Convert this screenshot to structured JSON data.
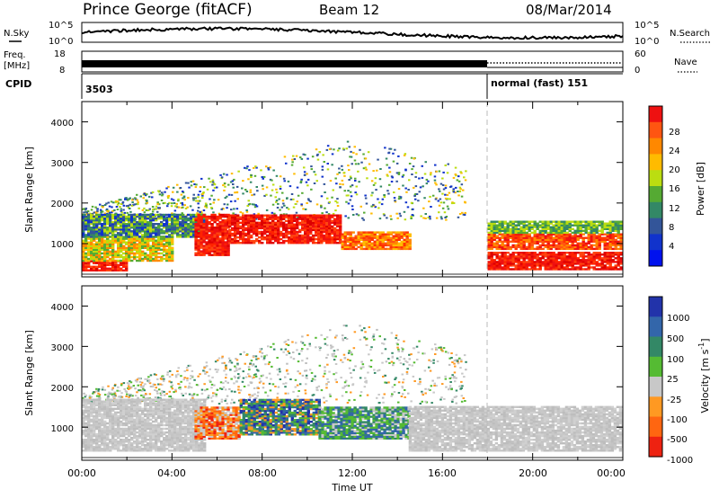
{
  "header": {
    "station": "Prince George (fitACF)",
    "beam": "Beam 12",
    "date": "08/Mar/2014"
  },
  "aux_panels": {
    "nsky_label": "N.Sky",
    "nsky_ticks": [
      "10^5",
      "10^0"
    ],
    "nsearch_label": "N.Search",
    "nsearch_ticks": [
      "10^5",
      "10^0"
    ],
    "freq_label": "Freq.",
    "freq_unit": "[MHz]",
    "freq_ticks": [
      "18",
      "8"
    ],
    "nave_label": "Nave",
    "nave_ticks": [
      "60",
      "0"
    ],
    "cpid_label": "CPID",
    "cpid_segments": [
      {
        "start_hour": 0,
        "end_hour": 18,
        "text": "3503"
      },
      {
        "start_hour": 18,
        "end_hour": 24,
        "text": "normal (fast) 151"
      }
    ]
  },
  "colorbars": {
    "power": {
      "label": "Power [dB]",
      "ticks": [
        "28",
        "24",
        "20",
        "16",
        "12",
        "8",
        "4"
      ],
      "colors": [
        "#ee1111",
        "#ff5511",
        "#ff8800",
        "#ffbb00",
        "#bbdd11",
        "#55aa33",
        "#338866",
        "#335599",
        "#1133cc",
        "#0011ee"
      ]
    },
    "velocity": {
      "label_main": "Velocity [m s",
      "label_exp": "-1",
      "label_end": "]",
      "ticks": [
        "1000",
        "500",
        "100",
        "25",
        "-25",
        "-100",
        "-500",
        "-1000"
      ],
      "colors": [
        "#2233aa",
        "#3366aa",
        "#338866",
        "#55bb33",
        "#c8c8c8",
        "#ff9922",
        "#ff6611",
        "#ee2211"
      ]
    }
  },
  "chart_data": [
    {
      "type": "heatmap",
      "title": "Power",
      "ylabel": "Slant Range [km]",
      "xlabel": "Time UT",
      "xlim": [
        0,
        24
      ],
      "ylim": [
        180,
        4500
      ],
      "x_ticks": [
        "00:00",
        "04:00",
        "08:00",
        "12:00",
        "16:00",
        "20:00",
        "00:00"
      ],
      "y_ticks": [
        "1000",
        "2000",
        "3000",
        "4000"
      ],
      "cpid_change_hour": 18,
      "bands": [
        {
          "t0": 0,
          "t1": 2,
          "r0": 320,
          "r1": 560,
          "level": "red"
        },
        {
          "t0": 0,
          "t1": 4,
          "r0": 560,
          "r1": 1150,
          "level": "orange-yellow"
        },
        {
          "t0": 0,
          "t1": 5.5,
          "r0": 1150,
          "r1": 1700,
          "level": "green-blue"
        },
        {
          "t0": 5,
          "t1": 6.5,
          "r0": 700,
          "r1": 1700,
          "level": "red"
        },
        {
          "t0": 6.5,
          "t1": 11.5,
          "r0": 1000,
          "r1": 1700,
          "level": "red"
        },
        {
          "t0": 11.5,
          "t1": 14.5,
          "r0": 850,
          "r1": 1300,
          "level": "orange"
        },
        {
          "t0": 18,
          "t1": 24,
          "r0": 350,
          "r1": 800,
          "level": "red"
        },
        {
          "t0": 18,
          "t1": 24,
          "r0": 850,
          "r1": 1250,
          "level": "red-orange"
        },
        {
          "t0": 18,
          "t1": 24,
          "r0": 1250,
          "r1": 1550,
          "level": "green"
        }
      ]
    },
    {
      "type": "heatmap",
      "title": "Velocity",
      "ylabel": "Slant Range [km]",
      "xlabel": "Time UT",
      "xlim": [
        0,
        24
      ],
      "ylim": [
        180,
        4500
      ],
      "x_ticks": [
        "00:00",
        "04:00",
        "08:00",
        "12:00",
        "16:00",
        "20:00",
        "00:00"
      ],
      "y_ticks": [
        "1000",
        "2000",
        "3000",
        "4000"
      ],
      "bands": [
        {
          "t0": 0,
          "t1": 5.5,
          "r0": 400,
          "r1": 1700,
          "level": "grey"
        },
        {
          "t0": 5,
          "t1": 7,
          "r0": 700,
          "r1": 1500,
          "level": "orange"
        },
        {
          "t0": 7,
          "t1": 10.5,
          "r0": 800,
          "r1": 1700,
          "level": "green-blue"
        },
        {
          "t0": 10.5,
          "t1": 14.5,
          "r0": 700,
          "r1": 1500,
          "level": "green"
        },
        {
          "t0": 14.5,
          "t1": 24,
          "r0": 400,
          "r1": 1500,
          "level": "grey"
        }
      ]
    }
  ],
  "x_axis_label": "Time UT"
}
